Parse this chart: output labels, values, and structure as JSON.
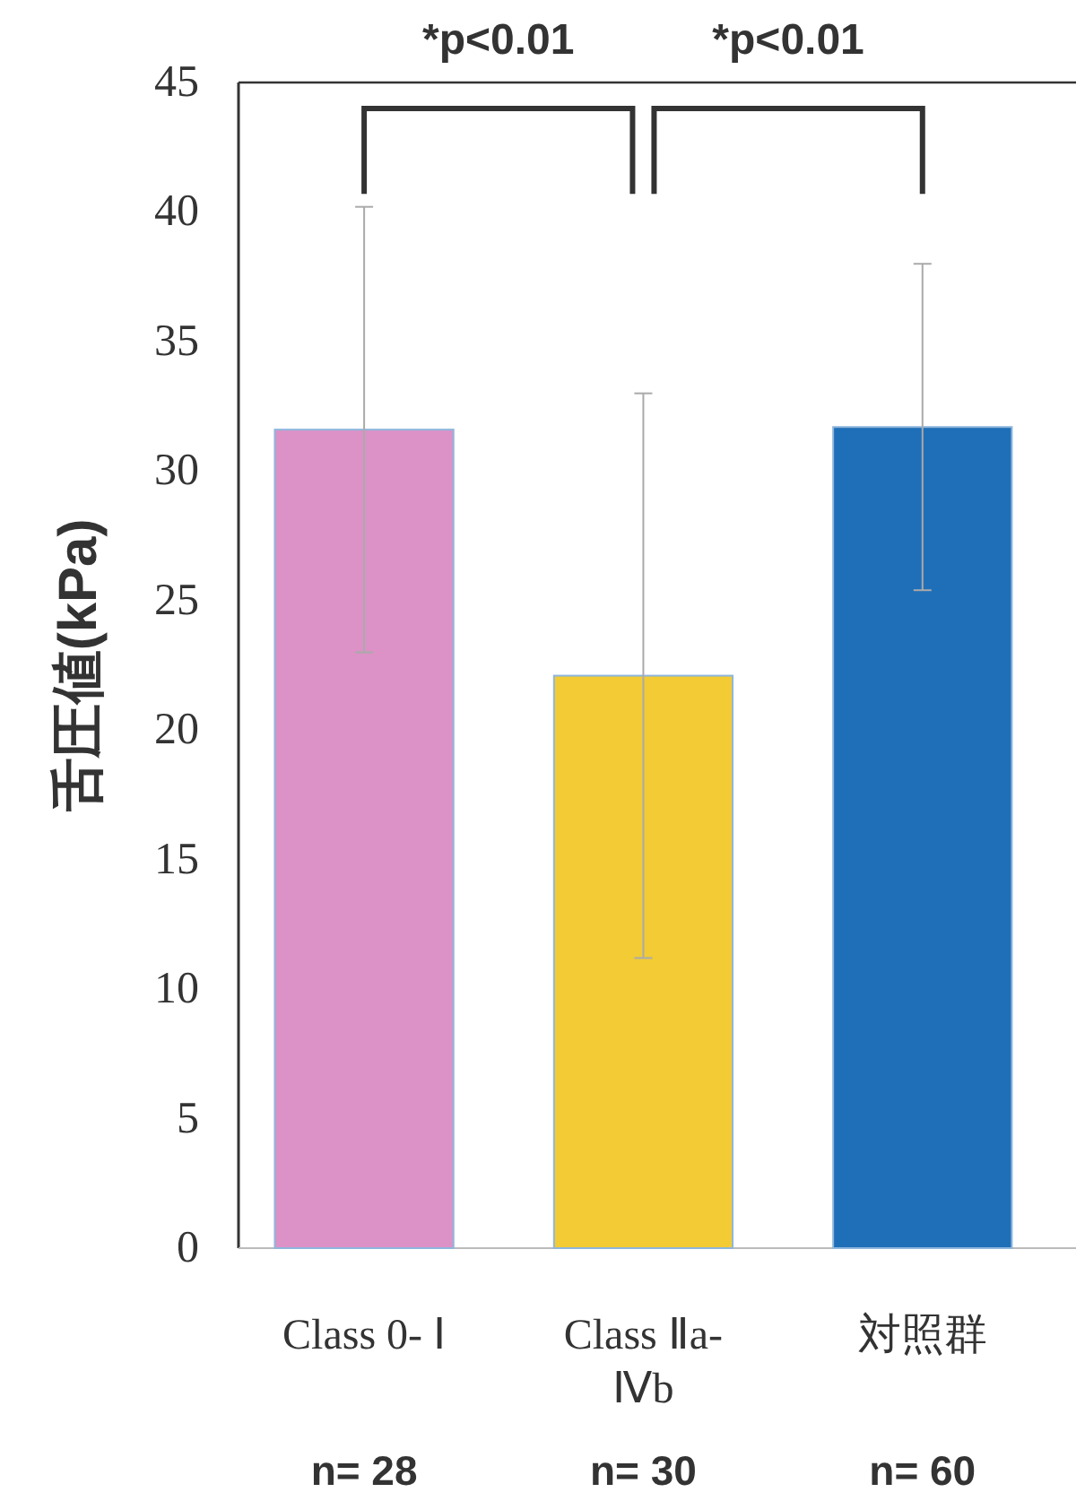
{
  "chart_data": {
    "type": "bar",
    "ylabel": "舌圧値(kPa)",
    "categories": [
      "Class 0- Ⅰ",
      "Class Ⅱa- Ⅳb",
      "対照群"
    ],
    "values": [
      31.6,
      22.1,
      31.7
    ],
    "colors": [
      "#dc92c6",
      "#f2cb35",
      "#1f6fb8"
    ],
    "errors": [
      8.6,
      10.9,
      6.3
    ],
    "ylim": [
      0,
      45
    ],
    "yticks": [
      0,
      5,
      10,
      15,
      20,
      25,
      30,
      35,
      40,
      45
    ],
    "annotations": [
      "*p<0.01",
      "*p<0.01",
      "n= 28",
      "n= 30",
      "n= 60"
    ]
  }
}
